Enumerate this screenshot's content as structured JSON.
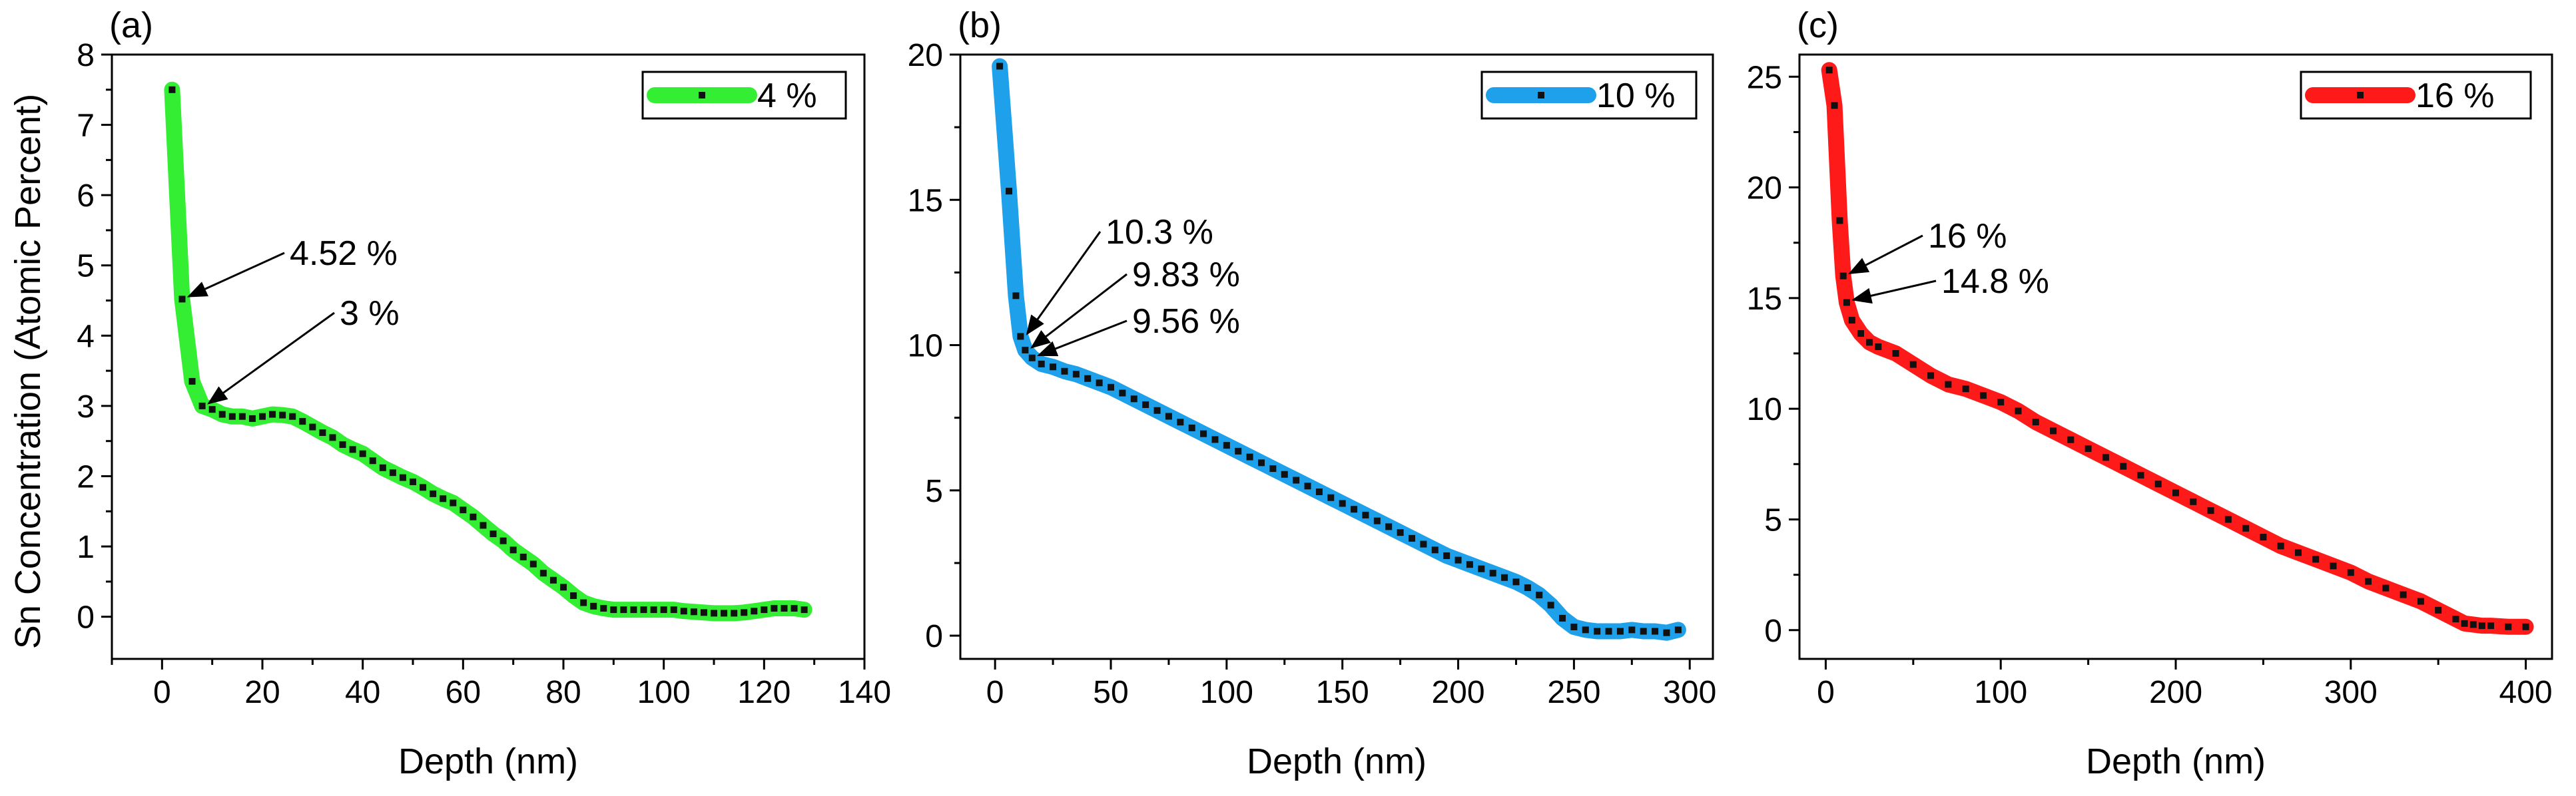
{
  "figure": {
    "shared_ylabel": "Sn Concentration  (Atomic Percent)",
    "shared_xlabel": "Depth (nm)"
  },
  "chart_data": [
    {
      "type": "line",
      "panel_label": "(a)",
      "xlabel": "Depth (nm)",
      "ylabel": "Sn Concentration  (Atomic Percent)",
      "xlim": [
        -10,
        140
      ],
      "ylim": [
        -0.6,
        8.0
      ],
      "xticks": [
        0,
        20,
        40,
        60,
        80,
        100,
        120,
        140
      ],
      "yticks": [
        0,
        1,
        2,
        3,
        4,
        5,
        6,
        7,
        8
      ],
      "line_color": "#33ee33",
      "legend": {
        "label": "4 %",
        "placement": "top-right"
      },
      "series": [
        {
          "name": "4 %",
          "x": [
            2,
            4,
            6,
            8,
            10,
            12,
            14,
            16,
            18,
            20,
            22,
            24,
            26,
            28,
            30,
            32,
            34,
            36,
            38,
            40,
            42,
            44,
            46,
            48,
            50,
            52,
            54,
            56,
            58,
            60,
            62,
            64,
            66,
            68,
            70,
            72,
            74,
            76,
            78,
            80,
            82,
            84,
            86,
            88,
            90,
            92,
            94,
            96,
            98,
            100,
            102,
            104,
            106,
            108,
            110,
            112,
            114,
            116,
            118,
            120,
            122,
            124,
            126,
            128
          ],
          "y": [
            7.5,
            4.52,
            3.35,
            3.0,
            2.95,
            2.88,
            2.85,
            2.85,
            2.82,
            2.85,
            2.88,
            2.87,
            2.85,
            2.78,
            2.7,
            2.62,
            2.55,
            2.45,
            2.38,
            2.32,
            2.22,
            2.12,
            2.05,
            1.98,
            1.92,
            1.84,
            1.75,
            1.68,
            1.62,
            1.52,
            1.42,
            1.3,
            1.18,
            1.08,
            0.95,
            0.85,
            0.75,
            0.62,
            0.52,
            0.42,
            0.3,
            0.2,
            0.15,
            0.12,
            0.1,
            0.1,
            0.1,
            0.1,
            0.1,
            0.1,
            0.1,
            0.08,
            0.07,
            0.06,
            0.05,
            0.05,
            0.05,
            0.06,
            0.08,
            0.1,
            0.12,
            0.12,
            0.12,
            0.1
          ]
        }
      ],
      "annotations": [
        {
          "text": "4.52 %",
          "x": 4,
          "y": 4.52
        },
        {
          "text": "3 %",
          "x": 8,
          "y": 3.0
        }
      ]
    },
    {
      "type": "line",
      "panel_label": "(b)",
      "xlabel": "Depth (nm)",
      "ylabel": "",
      "xlim": [
        -15,
        310
      ],
      "ylim": [
        -0.8,
        20
      ],
      "xticks": [
        0,
        50,
        100,
        150,
        200,
        250,
        300
      ],
      "yticks": [
        0,
        5,
        10,
        15,
        20
      ],
      "line_color": "#1ea0ea",
      "legend": {
        "label": "10 %",
        "placement": "top-right"
      },
      "series": [
        {
          "name": "10 %",
          "x": [
            2,
            6,
            9,
            11,
            13,
            16,
            20,
            25,
            30,
            35,
            40,
            45,
            50,
            55,
            60,
            65,
            70,
            75,
            80,
            85,
            90,
            95,
            100,
            105,
            110,
            115,
            120,
            125,
            130,
            135,
            140,
            145,
            150,
            155,
            160,
            165,
            170,
            175,
            180,
            185,
            190,
            195,
            200,
            205,
            210,
            215,
            220,
            225,
            230,
            235,
            240,
            245,
            250,
            255,
            260,
            265,
            270,
            275,
            280,
            285,
            290,
            295
          ],
          "y": [
            19.6,
            15.3,
            11.7,
            10.3,
            9.83,
            9.56,
            9.35,
            9.25,
            9.1,
            9.0,
            8.85,
            8.7,
            8.55,
            8.35,
            8.15,
            7.95,
            7.75,
            7.55,
            7.35,
            7.15,
            6.95,
            6.75,
            6.55,
            6.35,
            6.15,
            5.95,
            5.75,
            5.55,
            5.35,
            5.15,
            4.95,
            4.75,
            4.55,
            4.35,
            4.15,
            3.95,
            3.75,
            3.55,
            3.35,
            3.15,
            2.95,
            2.75,
            2.6,
            2.45,
            2.3,
            2.15,
            2.0,
            1.85,
            1.65,
            1.4,
            1.05,
            0.6,
            0.3,
            0.2,
            0.15,
            0.15,
            0.15,
            0.2,
            0.15,
            0.15,
            0.1,
            0.2
          ]
        }
      ],
      "annotations": [
        {
          "text": "10.3 %",
          "x": 11,
          "y": 10.3
        },
        {
          "text": "9.83 %",
          "x": 13,
          "y": 9.83
        },
        {
          "text": "9.56 %",
          "x": 16,
          "y": 9.56
        }
      ]
    },
    {
      "type": "line",
      "panel_label": "(c)",
      "xlabel": "Depth (nm)",
      "ylabel": "",
      "xlim": [
        -15,
        415
      ],
      "ylim": [
        -1.3,
        26
      ],
      "xticks": [
        0,
        100,
        200,
        300,
        400
      ],
      "yticks": [
        0,
        5,
        10,
        15,
        20,
        25
      ],
      "line_color": "#ff1a1a",
      "legend": {
        "label": "16 %",
        "placement": "top-right"
      },
      "series": [
        {
          "name": "16 %",
          "x": [
            2,
            5,
            8,
            10,
            12,
            15,
            20,
            25,
            30,
            40,
            50,
            60,
            70,
            80,
            90,
            100,
            110,
            120,
            130,
            140,
            150,
            160,
            170,
            180,
            190,
            200,
            210,
            220,
            230,
            240,
            250,
            260,
            270,
            280,
            290,
            300,
            310,
            320,
            330,
            340,
            350,
            360,
            365,
            370,
            375,
            380,
            390,
            400
          ],
          "y": [
            25.3,
            23.7,
            18.5,
            16.0,
            14.8,
            14.0,
            13.4,
            13.0,
            12.8,
            12.5,
            12.0,
            11.5,
            11.1,
            10.9,
            10.6,
            10.3,
            9.9,
            9.4,
            9.0,
            8.6,
            8.2,
            7.8,
            7.4,
            7.0,
            6.6,
            6.2,
            5.8,
            5.4,
            5.0,
            4.6,
            4.2,
            3.8,
            3.5,
            3.2,
            2.9,
            2.6,
            2.2,
            1.9,
            1.6,
            1.3,
            0.9,
            0.5,
            0.3,
            0.25,
            0.2,
            0.2,
            0.15,
            0.15
          ]
        }
      ],
      "annotations": [
        {
          "text": "16 %",
          "x": 10,
          "y": 16.0
        },
        {
          "text": "14.8 %",
          "x": 12,
          "y": 14.8
        }
      ]
    }
  ]
}
